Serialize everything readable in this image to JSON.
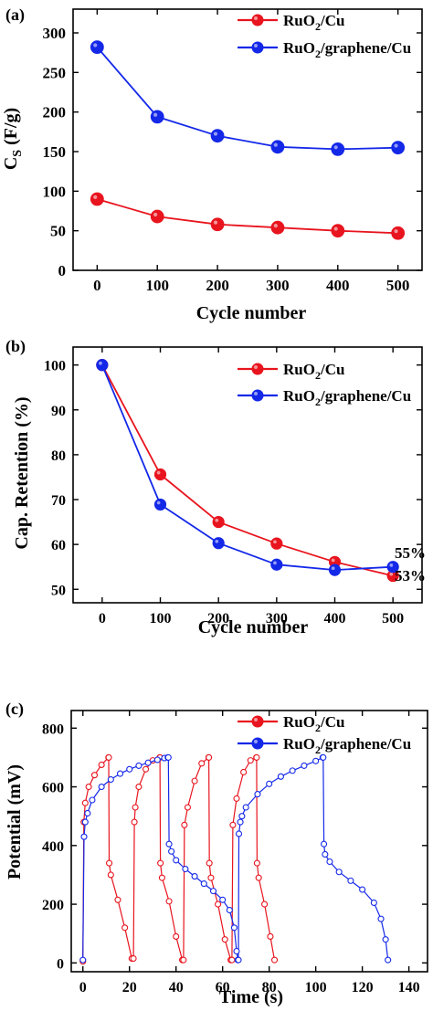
{
  "chart_data": [
    {
      "panel_label": "(a)",
      "type": "line",
      "xlabel": "Cycle number",
      "ylabel": "C",
      "ylabel_sub": "S",
      "ylabel_unit": " (F/g)",
      "xlim": [
        -40,
        540
      ],
      "ylim": [
        0,
        330
      ],
      "x_ticks": [
        0,
        100,
        200,
        300,
        400,
        500
      ],
      "y_ticks": [
        0,
        50,
        100,
        150,
        200,
        250,
        300
      ],
      "legend_position": "top-right",
      "series": [
        {
          "name": "RuO2/Cu",
          "legend": {
            "main": "RuO",
            "sub": "2",
            "rest": "/Cu"
          },
          "color": "#e8141e",
          "x": [
            0,
            100,
            200,
            300,
            400,
            500
          ],
          "values": [
            90,
            68,
            58,
            54,
            50,
            47
          ]
        },
        {
          "name": "RuO2/graphene/Cu",
          "legend": {
            "main": "RuO",
            "sub": "2",
            "rest": "/graphene/Cu"
          },
          "color": "#1428e8",
          "x": [
            0,
            100,
            200,
            300,
            400,
            500
          ],
          "values": [
            282,
            194,
            170,
            156,
            153,
            155
          ]
        }
      ]
    },
    {
      "panel_label": "(b)",
      "type": "line",
      "xlabel": "Cycle number",
      "ylabel": "Cap. Retention (%)",
      "xlim": [
        -50,
        550
      ],
      "ylim": [
        47,
        104
      ],
      "x_ticks": [
        0,
        100,
        200,
        300,
        400,
        500
      ],
      "y_ticks": [
        50,
        60,
        70,
        80,
        90,
        100
      ],
      "legend_position": "top-right",
      "annotations": [
        {
          "text": "55%",
          "color": "#1428e8"
        },
        {
          "text": "53%",
          "color": "#e8141e"
        }
      ],
      "series": [
        {
          "name": "RuO2/Cu",
          "legend": {
            "main": "RuO",
            "sub": "2",
            "rest": "/Cu"
          },
          "color": "#e8141e",
          "x": [
            0,
            100,
            200,
            300,
            400,
            500
          ],
          "values": [
            100,
            75.6,
            65,
            60.2,
            56.1,
            53
          ]
        },
        {
          "name": "RuO2/graphene/Cu",
          "legend": {
            "main": "RuO",
            "sub": "2",
            "rest": "/graphene/Cu"
          },
          "color": "#1428e8",
          "x": [
            0,
            100,
            200,
            300,
            400,
            500
          ],
          "values": [
            100,
            68.9,
            60.3,
            55.5,
            54.3,
            55
          ]
        }
      ]
    },
    {
      "panel_label": "(c)",
      "type": "line",
      "xlabel": "Time (s)",
      "ylabel": "Potential (mV)",
      "xlim": [
        -5,
        148
      ],
      "ylim": [
        -30,
        860
      ],
      "x_ticks": [
        0,
        20,
        40,
        60,
        80,
        100,
        120,
        140
      ],
      "y_ticks": [
        0,
        200,
        400,
        600,
        800
      ],
      "legend_position": "top-right",
      "series": [
        {
          "name": "RuO2/Cu",
          "legend": {
            "main": "RuO",
            "sub": "2",
            "rest": "/Cu"
          },
          "color": "#e8141e",
          "x": [
            0,
            0.4,
            1,
            2.5,
            5,
            8,
            11,
            11.1,
            11.3,
            12,
            15,
            18,
            21,
            21.7,
            22.1,
            22.5,
            24,
            27,
            30,
            33,
            33.1,
            33.3,
            34,
            37,
            40,
            42.7,
            43.2,
            43.6,
            45,
            48,
            51,
            54,
            54.1,
            54.3,
            55,
            58,
            61,
            63.5,
            64,
            64.4,
            66,
            69,
            72,
            74.5,
            74.6,
            74.8,
            75.5,
            78,
            80.5,
            82.3
          ],
          "values": [
            5,
            480,
            545,
            600,
            640,
            675,
            700,
            700,
            340,
            300,
            215,
            120,
            15,
            15,
            480,
            530,
            600,
            660,
            690,
            700,
            700,
            340,
            290,
            210,
            90,
            10,
            10,
            470,
            530,
            620,
            680,
            700,
            700,
            340,
            290,
            200,
            80,
            10,
            10,
            470,
            560,
            650,
            690,
            700,
            700,
            340,
            290,
            200,
            90,
            10
          ]
        },
        {
          "name": "RuO2/graphene/Cu",
          "legend": {
            "main": "RuO",
            "sub": "2",
            "rest": "/graphene/Cu"
          },
          "color": "#1428e8",
          "x": [
            0,
            0.5,
            1,
            2,
            4,
            8,
            12,
            16,
            20,
            24,
            28,
            32,
            35,
            36.5,
            36.7,
            37,
            38,
            40,
            44,
            48,
            52,
            56,
            60,
            63,
            65,
            66,
            66.5,
            66.8,
            67,
            67.6,
            68.3,
            70,
            75,
            80,
            85,
            90,
            95,
            100,
            103,
            103.2,
            103.5,
            104,
            106,
            110,
            115,
            120,
            125,
            128,
            130,
            131
          ],
          "values": [
            10,
            430,
            480,
            510,
            555,
            600,
            625,
            645,
            660,
            672,
            682,
            692,
            698,
            700,
            700,
            405,
            380,
            350,
            320,
            295,
            270,
            245,
            215,
            180,
            120,
            40,
            10,
            10,
            440,
            480,
            500,
            530,
            575,
            610,
            635,
            655,
            672,
            688,
            700,
            700,
            405,
            370,
            345,
            310,
            280,
            250,
            205,
            150,
            80,
            10
          ]
        }
      ]
    }
  ]
}
